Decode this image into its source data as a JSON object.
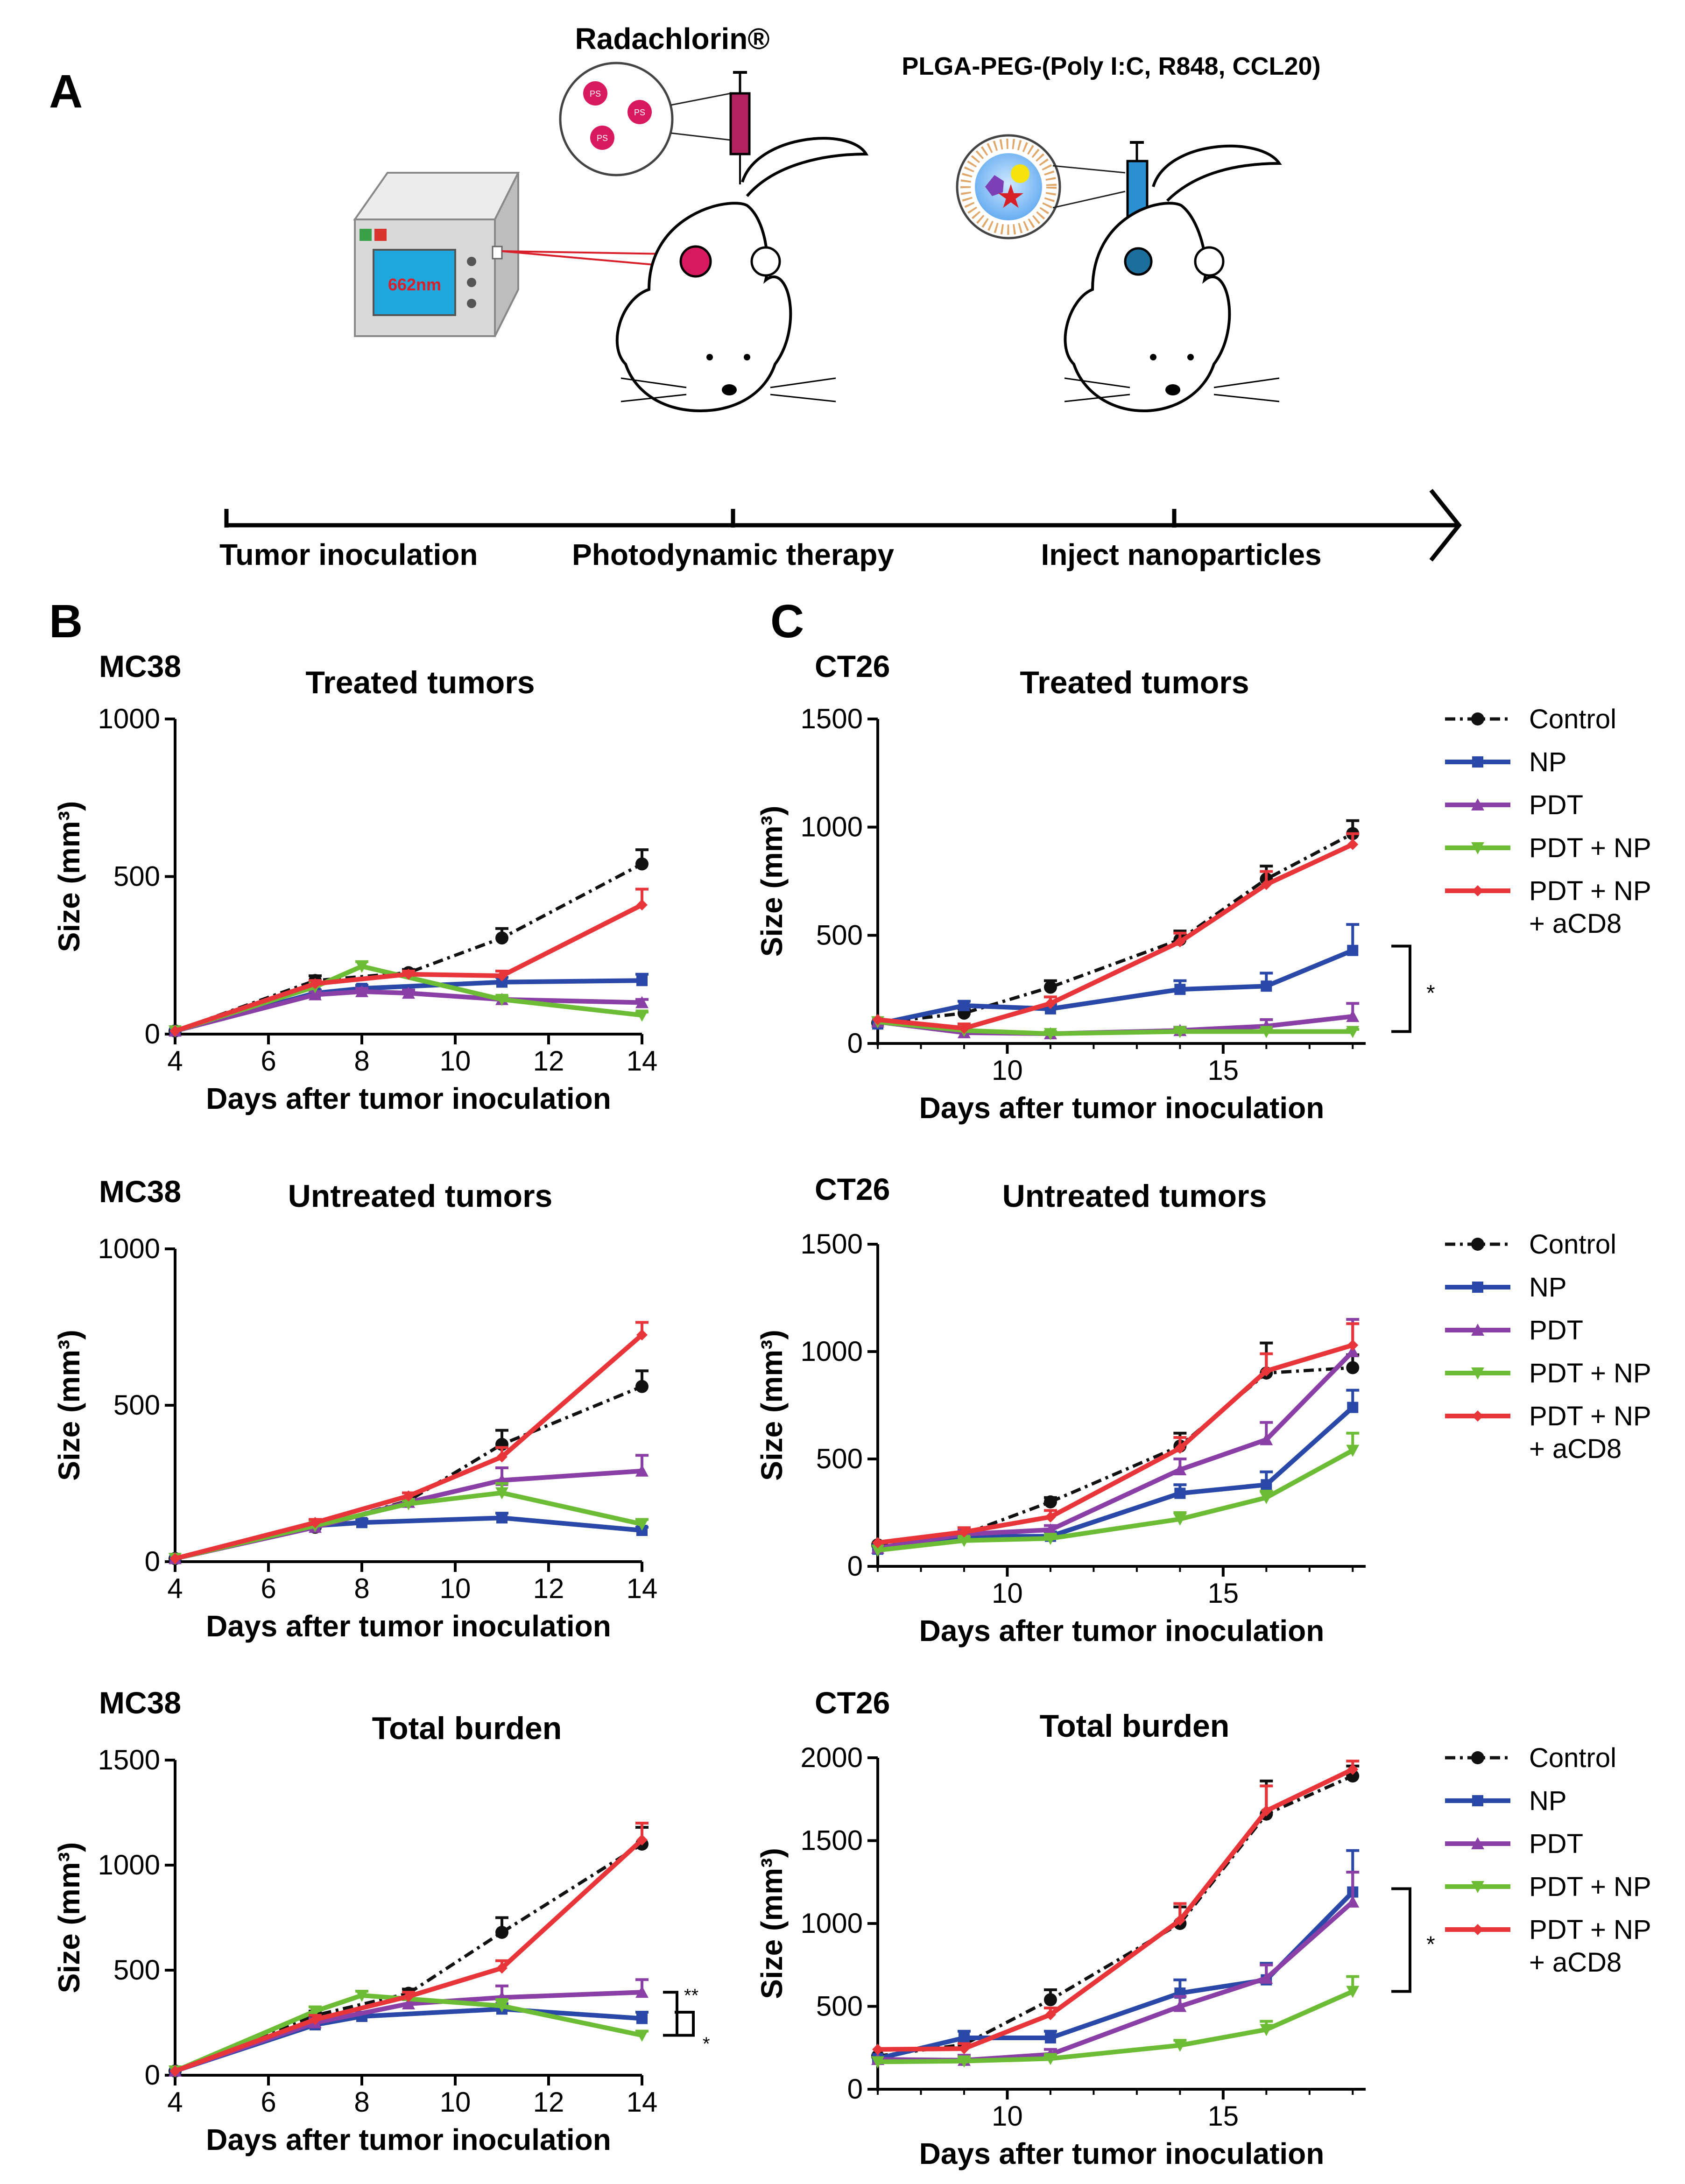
{
  "panel_labels": {
    "a": "A",
    "b": "B",
    "c": "C"
  },
  "schematic": {
    "photosensitizer_name": "Radachlorin®",
    "ps_label": "PS",
    "nanoparticle_name": "PLGA-PEG-(Poly I:C, R848, CCL20)",
    "laser_label": "662nm",
    "timeline_steps": [
      "Tumor inoculation",
      "Photodynamic therapy",
      "Inject nanoparticles"
    ]
  },
  "colors": {
    "Control": "#111111",
    "NP": "#2a48a8",
    "PDT": "#8a3fa6",
    "PDT + NP": "#6cbd35",
    "PDT + NP + aCD8": "#e8353a"
  },
  "legend_entries": [
    "Control",
    "NP",
    "PDT",
    "PDT + NP",
    "PDT + NP + aCD8"
  ],
  "chart_data": [
    {
      "id": "mc38_treated",
      "type": "line",
      "model": "MC38",
      "title": "Treated tumors",
      "xlabel": "Days after tumor inoculation",
      "ylabel": "Size (mm³)",
      "xlim": [
        4,
        14
      ],
      "ylim": [
        0,
        1000
      ],
      "xticks": [
        4,
        6,
        8,
        10,
        12,
        14
      ],
      "yticks": [
        0,
        500,
        1000
      ],
      "series": [
        {
          "name": "Control",
          "x": [
            4,
            7,
            9,
            11,
            14
          ],
          "y": [
            10,
            170,
            195,
            305,
            540
          ],
          "err": [
            0,
            15,
            10,
            30,
            45
          ]
        },
        {
          "name": "NP",
          "x": [
            4,
            7,
            8,
            11,
            14
          ],
          "y": [
            10,
            130,
            145,
            165,
            170
          ],
          "err": [
            0,
            10,
            10,
            15,
            20
          ]
        },
        {
          "name": "PDT",
          "x": [
            4,
            7,
            8,
            9,
            11,
            14
          ],
          "y": [
            10,
            125,
            135,
            130,
            110,
            100
          ],
          "err": [
            0,
            10,
            10,
            10,
            10,
            10
          ]
        },
        {
          "name": "PDT + NP",
          "x": [
            4,
            7,
            8,
            11,
            14
          ],
          "y": [
            10,
            150,
            215,
            110,
            60
          ],
          "err": [
            0,
            10,
            15,
            10,
            10
          ]
        },
        {
          "name": "PDT + NP + aCD8",
          "x": [
            4,
            7,
            9,
            11,
            14
          ],
          "y": [
            10,
            160,
            190,
            185,
            410
          ],
          "err": [
            0,
            10,
            10,
            15,
            50
          ]
        }
      ]
    },
    {
      "id": "mc38_untreated",
      "type": "line",
      "model": "MC38",
      "title": "Untreated tumors",
      "xlabel": "Days after tumor inoculation",
      "ylabel": "Size (mm³)",
      "xlim": [
        4,
        14
      ],
      "ylim": [
        0,
        1000
      ],
      "xticks": [
        4,
        6,
        8,
        10,
        12,
        14
      ],
      "yticks": [
        0,
        500,
        1000
      ],
      "series": [
        {
          "name": "Control",
          "x": [
            4,
            7,
            9,
            11,
            14
          ],
          "y": [
            10,
            110,
            195,
            375,
            560
          ],
          "err": [
            0,
            10,
            10,
            45,
            50
          ]
        },
        {
          "name": "NP",
          "x": [
            4,
            7,
            8,
            11,
            14
          ],
          "y": [
            10,
            115,
            125,
            140,
            100
          ],
          "err": [
            0,
            10,
            10,
            15,
            10
          ]
        },
        {
          "name": "PDT",
          "x": [
            4,
            7,
            9,
            11,
            14
          ],
          "y": [
            10,
            110,
            190,
            260,
            290
          ],
          "err": [
            0,
            10,
            10,
            40,
            50
          ]
        },
        {
          "name": "PDT + NP",
          "x": [
            4,
            7,
            9,
            11,
            14
          ],
          "y": [
            10,
            115,
            185,
            220,
            120
          ],
          "err": [
            0,
            10,
            10,
            30,
            15
          ]
        },
        {
          "name": "PDT + NP + aCD8",
          "x": [
            4,
            7,
            9,
            11,
            14
          ],
          "y": [
            10,
            125,
            210,
            335,
            725
          ],
          "err": [
            0,
            10,
            10,
            30,
            40
          ]
        }
      ]
    },
    {
      "id": "mc38_total",
      "type": "line",
      "model": "MC38",
      "title": "Total burden",
      "xlabel": "Days after tumor inoculation",
      "ylabel": "Size (mm³)",
      "xlim": [
        4,
        14
      ],
      "ylim": [
        0,
        1500
      ],
      "xticks": [
        4,
        6,
        8,
        10,
        12,
        14
      ],
      "yticks": [
        0,
        500,
        1000,
        1500
      ],
      "significance": [
        "**",
        "*"
      ],
      "series": [
        {
          "name": "Control",
          "x": [
            4,
            7,
            9,
            11,
            14
          ],
          "y": [
            20,
            285,
            390,
            680,
            1100
          ],
          "err": [
            0,
            20,
            20,
            70,
            80
          ]
        },
        {
          "name": "NP",
          "x": [
            4,
            7,
            8,
            11,
            14
          ],
          "y": [
            20,
            240,
            280,
            315,
            270
          ],
          "err": [
            0,
            20,
            20,
            25,
            30
          ]
        },
        {
          "name": "PDT",
          "x": [
            4,
            7,
            9,
            11,
            14
          ],
          "y": [
            20,
            250,
            340,
            370,
            395
          ],
          "err": [
            0,
            20,
            20,
            55,
            60
          ]
        },
        {
          "name": "PDT + NP",
          "x": [
            4,
            7,
            8,
            11,
            14
          ],
          "y": [
            20,
            305,
            380,
            330,
            190
          ],
          "err": [
            0,
            20,
            20,
            30,
            20
          ]
        },
        {
          "name": "PDT + NP + aCD8",
          "x": [
            4,
            7,
            9,
            11,
            14
          ],
          "y": [
            20,
            265,
            375,
            510,
            1120
          ],
          "err": [
            0,
            20,
            20,
            35,
            80
          ]
        }
      ]
    },
    {
      "id": "ct26_treated",
      "type": "line",
      "model": "CT26",
      "title": "Treated tumors",
      "xlabel": "Days after tumor inoculation",
      "ylabel": "Size (mm³)",
      "xlim": [
        7,
        18.3
      ],
      "ylim": [
        0,
        1500
      ],
      "xticks": [
        10,
        15
      ],
      "yticks": [
        0,
        500,
        1000,
        1500
      ],
      "significance": [
        "*"
      ],
      "series": [
        {
          "name": "Control",
          "x": [
            7,
            9,
            11,
            14,
            16,
            18
          ],
          "y": [
            95,
            140,
            260,
            480,
            760,
            970
          ],
          "err": [
            0,
            20,
            30,
            40,
            60,
            60
          ]
        },
        {
          "name": "NP",
          "x": [
            7,
            9,
            11,
            14,
            16,
            18
          ],
          "y": [
            90,
            175,
            160,
            250,
            265,
            430
          ],
          "err": [
            0,
            20,
            20,
            40,
            60,
            120
          ]
        },
        {
          "name": "PDT",
          "x": [
            7,
            9,
            11,
            14,
            16,
            18
          ],
          "y": [
            100,
            50,
            45,
            60,
            80,
            125
          ],
          "err": [
            0,
            10,
            10,
            15,
            30,
            60
          ]
        },
        {
          "name": "PDT + NP",
          "x": [
            7,
            9,
            11,
            14,
            16,
            18
          ],
          "y": [
            100,
            60,
            45,
            55,
            55,
            55
          ],
          "err": [
            0,
            10,
            10,
            10,
            10,
            10
          ]
        },
        {
          "name": "PDT + NP + aCD8",
          "x": [
            7,
            9,
            11,
            14,
            16,
            18
          ],
          "y": [
            110,
            70,
            185,
            470,
            735,
            920
          ],
          "err": [
            0,
            20,
            30,
            40,
            60,
            50
          ]
        }
      ]
    },
    {
      "id": "ct26_untreated",
      "type": "line",
      "model": "CT26",
      "title": "Untreated tumors",
      "xlabel": "Days after tumor inoculation",
      "ylabel": "Size (mm³)",
      "xlim": [
        7,
        18.3
      ],
      "ylim": [
        0,
        1500
      ],
      "xticks": [
        10,
        15
      ],
      "yticks": [
        0,
        500,
        1000,
        1500
      ],
      "series": [
        {
          "name": "Control",
          "x": [
            7,
            9,
            11,
            14,
            16,
            18
          ],
          "y": [
            100,
            150,
            300,
            560,
            900,
            925
          ],
          "err": [
            0,
            20,
            20,
            60,
            140,
            60
          ]
        },
        {
          "name": "NP",
          "x": [
            7,
            9,
            11,
            14,
            16,
            18
          ],
          "y": [
            80,
            140,
            140,
            340,
            380,
            740
          ],
          "err": [
            0,
            20,
            20,
            40,
            60,
            80
          ]
        },
        {
          "name": "PDT",
          "x": [
            7,
            9,
            11,
            14,
            16,
            18
          ],
          "y": [
            85,
            150,
            170,
            450,
            590,
            1000
          ],
          "err": [
            0,
            20,
            20,
            50,
            80,
            150
          ]
        },
        {
          "name": "PDT + NP",
          "x": [
            7,
            9,
            11,
            14,
            16,
            18
          ],
          "y": [
            75,
            120,
            130,
            220,
            320,
            540
          ],
          "err": [
            0,
            15,
            15,
            30,
            30,
            80
          ]
        },
        {
          "name": "PDT + NP + aCD8",
          "x": [
            7,
            9,
            11,
            14,
            16,
            18
          ],
          "y": [
            110,
            160,
            230,
            550,
            910,
            1030
          ],
          "err": [
            0,
            20,
            30,
            50,
            80,
            100
          ]
        }
      ]
    },
    {
      "id": "ct26_total",
      "type": "line",
      "model": "CT26",
      "title": "Total burden",
      "xlabel": "Days after tumor inoculation",
      "ylabel": "Size (mm³)",
      "xlim": [
        7,
        18.3
      ],
      "ylim": [
        0,
        2000
      ],
      "xticks": [
        10,
        15
      ],
      "yticks": [
        0,
        500,
        1000,
        1500,
        2000
      ],
      "significance": [
        "*"
      ],
      "series": [
        {
          "name": "Control",
          "x": [
            7,
            9,
            11,
            14,
            16,
            18
          ],
          "y": [
            200,
            270,
            540,
            1000,
            1660,
            1890
          ],
          "err": [
            0,
            30,
            60,
            100,
            200,
            60
          ]
        },
        {
          "name": "NP",
          "x": [
            7,
            9,
            11,
            14,
            16,
            18
          ],
          "y": [
            185,
            310,
            310,
            580,
            660,
            1190
          ],
          "err": [
            0,
            40,
            40,
            80,
            100,
            250
          ]
        },
        {
          "name": "PDT",
          "x": [
            7,
            9,
            11,
            14,
            16,
            18
          ],
          "y": [
            180,
            175,
            210,
            500,
            670,
            1130
          ],
          "err": [
            0,
            30,
            30,
            60,
            80,
            180
          ]
        },
        {
          "name": "PDT + NP",
          "x": [
            7,
            9,
            11,
            14,
            16,
            18
          ],
          "y": [
            165,
            170,
            185,
            265,
            360,
            590
          ],
          "err": [
            0,
            20,
            20,
            30,
            50,
            90
          ]
        },
        {
          "name": "PDT + NP + aCD8",
          "x": [
            7,
            9,
            11,
            14,
            16,
            18
          ],
          "y": [
            240,
            245,
            450,
            1020,
            1680,
            1930
          ],
          "err": [
            0,
            30,
            40,
            100,
            150,
            50
          ]
        }
      ]
    }
  ]
}
